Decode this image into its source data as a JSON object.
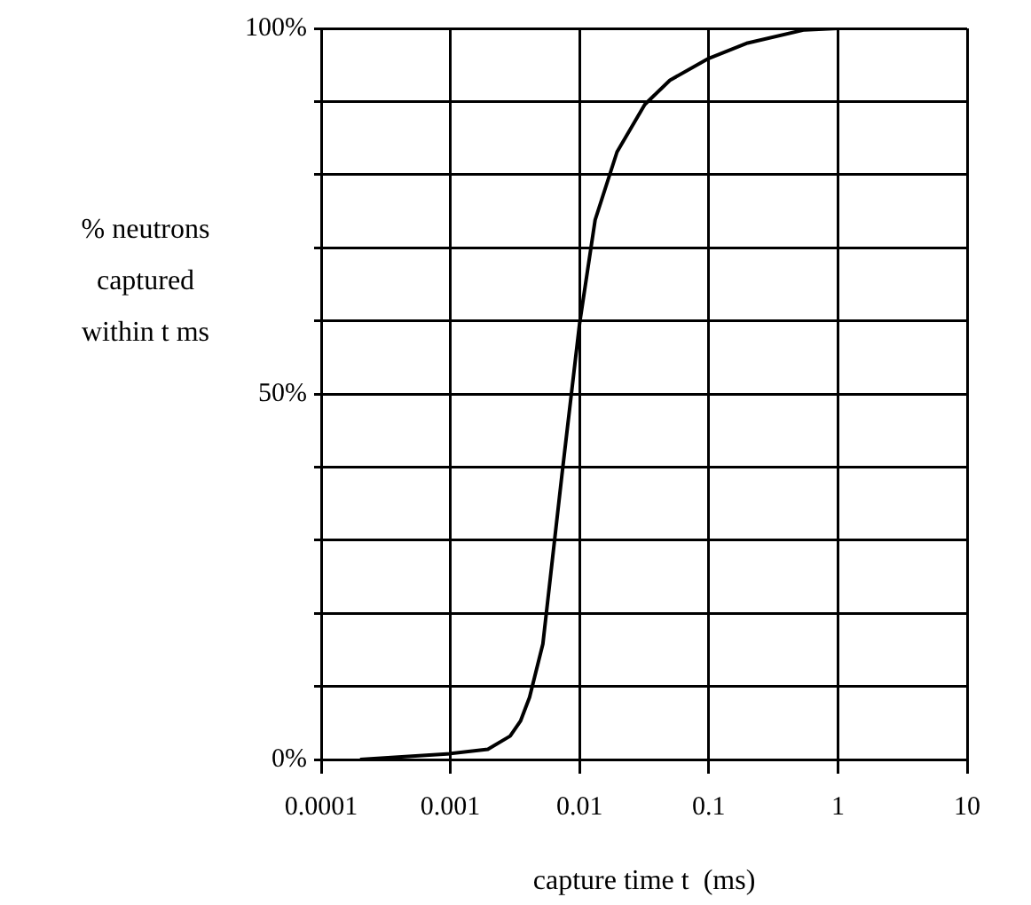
{
  "chart_data": {
    "type": "line",
    "xlabel": "capture time t  (ms)",
    "ylabel": "% neutrons\ncaptured\nwithin t ms",
    "log": "x",
    "x": [
      0.0002,
      0.001,
      0.00195,
      0.0029,
      0.0035,
      0.0041,
      0.0052,
      0.0073,
      0.01,
      0.0132,
      0.0195,
      0.032,
      0.05,
      0.1,
      0.2,
      0.55,
      1
    ],
    "series": [
      {
        "color": "#000000",
        "values": [
          0,
          0.8,
          1.4,
          3.2,
          5.3,
          8.5,
          15.8,
          38.9,
          59.6,
          73.8,
          83.1,
          89.6,
          92.9,
          95.9,
          98,
          99.8,
          100
        ]
      }
    ],
    "xlim": [
      0.0001,
      10
    ],
    "xticks": [
      {
        "value": 0.0001,
        "label": "0.0001"
      },
      {
        "value": 0.001,
        "label": "0.001"
      },
      {
        "value": 0.01,
        "label": "0.01"
      },
      {
        "value": 0.1,
        "label": "0.1"
      },
      {
        "value": 1,
        "label": "1"
      },
      {
        "value": 10,
        "label": "10"
      }
    ],
    "ylim": [
      0,
      100
    ],
    "yticks": [
      {
        "value": 0,
        "label": "0%"
      },
      {
        "value": 10,
        "label": null
      },
      {
        "value": 20,
        "label": null
      },
      {
        "value": 30,
        "label": null
      },
      {
        "value": 40,
        "label": null
      },
      {
        "value": 50,
        "label": "50%"
      },
      {
        "value": 60,
        "label": null
      },
      {
        "value": 70,
        "label": null
      },
      {
        "value": 80,
        "label": null
      },
      {
        "value": 90,
        "label": null
      },
      {
        "value": 100,
        "label": "100%"
      }
    ],
    "grid": true,
    "legend": false,
    "marker": "none",
    "line_style": "solid"
  }
}
